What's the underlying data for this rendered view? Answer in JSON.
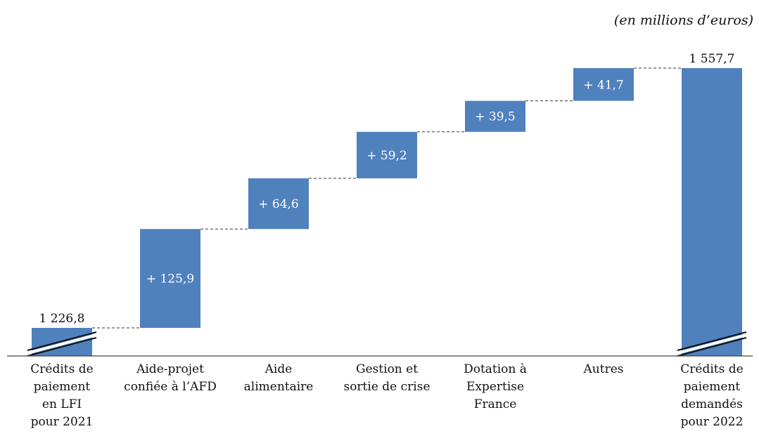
{
  "unit_note": "(en millions d’euros)",
  "colors": {
    "bar": "#4f81bd",
    "axis": "#444444"
  },
  "chart_data": {
    "type": "waterfall",
    "categories": [
      [
        "Crédits de",
        "paiement",
        "en LFI",
        "pour 2021"
      ],
      [
        "Aide-projet",
        "confiée à l’AFD"
      ],
      [
        "Aide",
        "alimentaire"
      ],
      [
        "Gestion et",
        "sortie de crise"
      ],
      [
        "Dotation à",
        "Expertise",
        "France"
      ],
      [
        "Autres"
      ],
      [
        "Crédits de",
        "paiement",
        "demandés",
        "pour 2022"
      ]
    ],
    "steps": [
      {
        "kind": "total",
        "value": 1226.8,
        "label": "1 226,8"
      },
      {
        "kind": "delta",
        "value": 125.9,
        "label": "+ 125,9"
      },
      {
        "kind": "delta",
        "value": 64.6,
        "label": "+ 64,6"
      },
      {
        "kind": "delta",
        "value": 59.2,
        "label": "+ 59,2"
      },
      {
        "kind": "delta",
        "value": 39.5,
        "label": "+ 39,5"
      },
      {
        "kind": "delta",
        "value": 41.7,
        "label": "+ 41,7"
      },
      {
        "kind": "total",
        "value": 1557.7,
        "label": "1 557,7"
      }
    ],
    "axis_break": true
  }
}
